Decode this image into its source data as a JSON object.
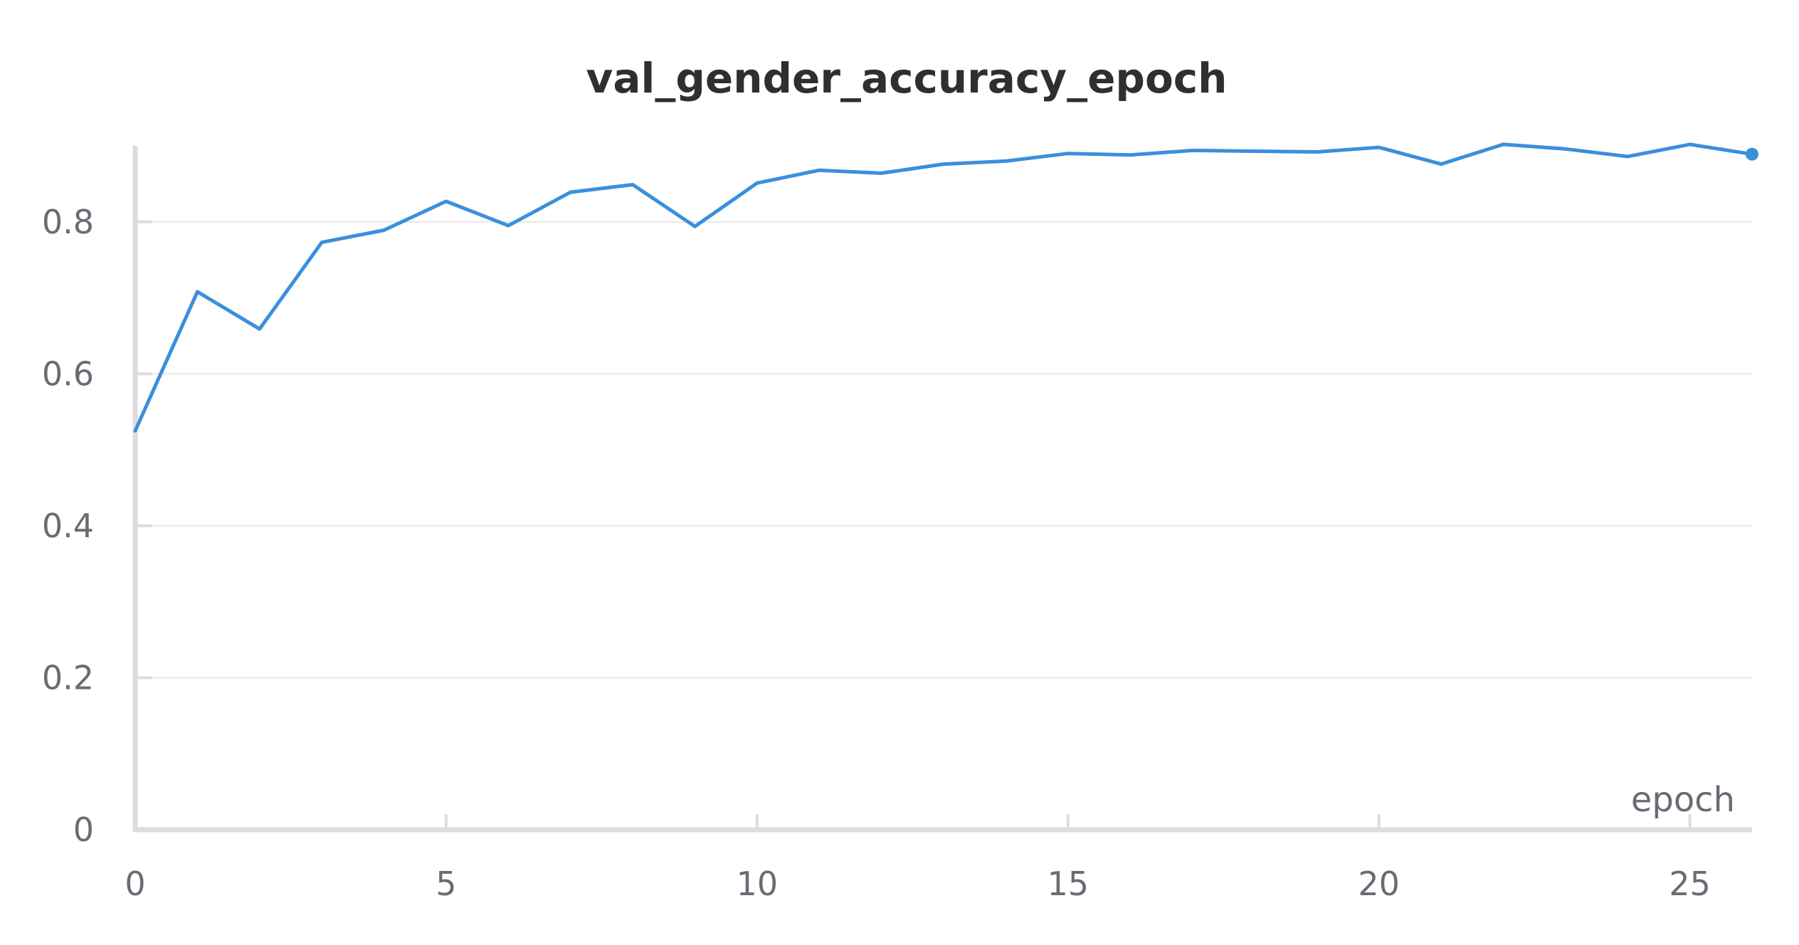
{
  "chart_data": {
    "type": "line",
    "title": "val_gender_accuracy_epoch",
    "xlabel": "epoch",
    "ylabel": "",
    "xlim": [
      0,
      26
    ],
    "ylim": [
      0,
      0.9
    ],
    "x_ticks": [
      0,
      5,
      10,
      15,
      20,
      25
    ],
    "x_tick_labels": [
      "0",
      "5",
      "10",
      "15",
      "20",
      "25"
    ],
    "y_ticks": [
      0,
      0.2,
      0.4,
      0.6,
      0.8
    ],
    "y_tick_labels": [
      "0",
      "0.2",
      "0.4",
      "0.6",
      "0.8"
    ],
    "grid": true,
    "legend": "none",
    "series": [
      {
        "color": "#3a8fdb",
        "x": [
          0,
          1,
          2,
          3,
          4,
          5,
          6,
          7,
          8,
          9,
          10,
          11,
          12,
          13,
          14,
          15,
          16,
          17,
          18,
          19,
          20,
          21,
          22,
          23,
          24,
          25,
          26
        ],
        "values": [
          0.525,
          0.708,
          0.659,
          0.773,
          0.789,
          0.827,
          0.795,
          0.839,
          0.849,
          0.794,
          0.851,
          0.868,
          0.864,
          0.876,
          0.88,
          0.89,
          0.888,
          0.894,
          0.893,
          0.892,
          0.898,
          0.876,
          0.902,
          0.896,
          0.886,
          0.902,
          0.889
        ]
      }
    ]
  }
}
